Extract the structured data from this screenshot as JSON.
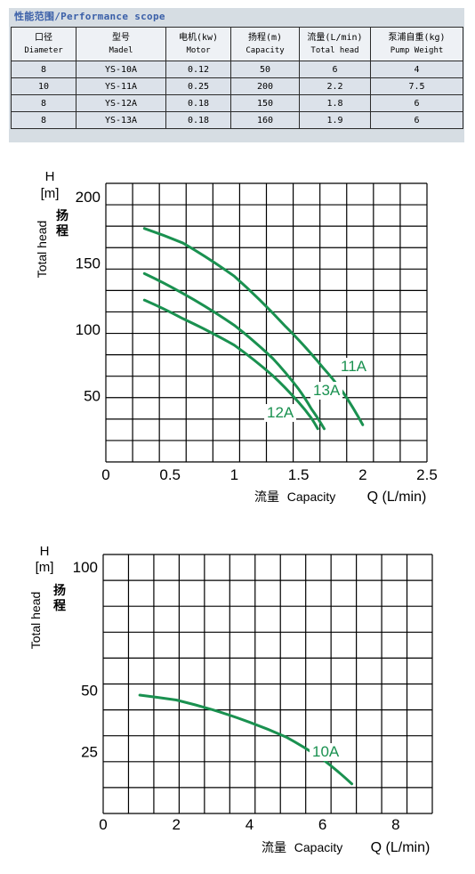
{
  "performance": {
    "title": "性能范围/Performance  scope",
    "headers": [
      {
        "zh": "口径",
        "en": "Diameter"
      },
      {
        "zh": "型号",
        "en": "Madel"
      },
      {
        "zh": "电机(kw)",
        "en": "Motor"
      },
      {
        "zh": "扬程(m)",
        "en": "Capacity"
      },
      {
        "zh": "流量(L/min)",
        "en": "Total head"
      },
      {
        "zh": "泵浦自重(kg)",
        "en": "Pump Weight"
      }
    ],
    "rows": [
      [
        "8",
        "YS-10A",
        "0.12",
        "50",
        "6",
        "4"
      ],
      [
        "10",
        "YS-11A",
        "0.25",
        "200",
        "2.2",
        "7.5"
      ],
      [
        "8",
        "YS-12A",
        "0.18",
        "150",
        "1.8",
        "6"
      ],
      [
        "8",
        "YS-13A",
        "0.18",
        "160",
        "1.9",
        "6"
      ]
    ]
  },
  "chart_data": [
    {
      "type": "line",
      "y_unit_symbol": "H",
      "y_unit": "[m]",
      "ylabel_en": "Total head",
      "ylabel_zh": "扬程",
      "xlabel_zh": "流量",
      "xlabel_en": "Capacity",
      "x_symbol": "Q (L/min)",
      "xlim": [
        0,
        2.5
      ],
      "ylim": [
        0,
        210
      ],
      "x_ticks": [
        "0",
        "0.5",
        "1",
        "1.5",
        "2",
        "2.5"
      ],
      "y_ticks": [
        "50",
        "100",
        "150",
        "200"
      ],
      "y_tick_values": [
        50,
        100,
        150,
        200
      ],
      "x_tick_values": [
        0,
        0.5,
        1,
        1.5,
        2,
        2.5
      ],
      "grid": true,
      "line_color": "#1a9150",
      "series": [
        {
          "name": "11A",
          "x": [
            0.3,
            0.6,
            1.0,
            1.4,
            1.7,
            1.85,
            2.0
          ],
          "y": [
            176,
            165,
            140,
            102,
            70,
            52,
            28
          ]
        },
        {
          "name": "13A",
          "x": [
            0.3,
            0.6,
            1.0,
            1.3,
            1.5,
            1.6,
            1.7
          ],
          "y": [
            142,
            127,
            103,
            78,
            55,
            40,
            25
          ]
        },
        {
          "name": "12A",
          "x": [
            0.3,
            0.6,
            1.0,
            1.3,
            1.5,
            1.6,
            1.65
          ],
          "y": [
            122,
            108,
            88,
            65,
            45,
            33,
            25
          ]
        }
      ]
    },
    {
      "type": "line",
      "y_unit_symbol": "H",
      "y_unit": "[m]",
      "ylabel_en": "Total head",
      "ylabel_zh": "扬程",
      "xlabel_zh": "流量",
      "xlabel_en": "Capacity",
      "x_symbol": "Q (L/min)",
      "xlim": [
        0,
        9
      ],
      "ylim": [
        0,
        105
      ],
      "x_ticks": [
        "0",
        "2",
        "4",
        "6",
        "8"
      ],
      "y_ticks": [
        "25",
        "50",
        "100"
      ],
      "y_tick_values": [
        25,
        50,
        100
      ],
      "x_tick_values": [
        0,
        2,
        4,
        6,
        8
      ],
      "grid": true,
      "line_color": "#1a9150",
      "series": [
        {
          "name": "10A",
          "x": [
            1.0,
            2.0,
            3.0,
            4.0,
            5.0,
            6.0,
            6.8
          ],
          "y": [
            48,
            46,
            42,
            37,
            31,
            22,
            12
          ]
        }
      ]
    }
  ]
}
